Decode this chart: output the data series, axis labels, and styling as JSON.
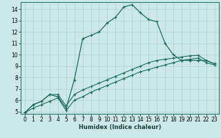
{
  "xlabel": "Humidex (Indice chaleur)",
  "bg_color": "#cde8e8",
  "grid_color": "#b0d0d0",
  "line_color": "#1a6b5a",
  "xlim": [
    -0.5,
    23.5
  ],
  "ylim": [
    4.8,
    14.6
  ],
  "xticks": [
    0,
    1,
    2,
    3,
    4,
    5,
    6,
    7,
    8,
    9,
    10,
    11,
    12,
    13,
    14,
    15,
    16,
    17,
    18,
    19,
    20,
    21,
    22,
    23
  ],
  "yticks": [
    5,
    6,
    7,
    8,
    9,
    10,
    11,
    12,
    13,
    14
  ],
  "curve_main_x": [
    0,
    1,
    2,
    3,
    4,
    5,
    6,
    7,
    8,
    9,
    10,
    11,
    12,
    13,
    14,
    15,
    16,
    17,
    18,
    19,
    20,
    21,
    22,
    23
  ],
  "curve_main_y": [
    4.9,
    5.6,
    5.9,
    6.5,
    6.3,
    5.3,
    7.8,
    11.4,
    11.7,
    12.0,
    12.8,
    13.3,
    14.2,
    14.4,
    13.7,
    13.1,
    12.9,
    11.0,
    10.0,
    9.5,
    9.5,
    9.5,
    9.5,
    9.2
  ],
  "curve_mid_x": [
    0,
    1,
    2,
    3,
    4,
    5,
    6,
    7,
    8,
    9,
    10,
    11,
    12,
    13,
    14,
    15,
    16,
    17,
    18,
    19,
    20,
    21,
    22,
    23
  ],
  "curve_mid_y": [
    4.9,
    5.6,
    5.9,
    6.5,
    6.5,
    5.5,
    6.5,
    6.9,
    7.2,
    7.5,
    7.8,
    8.1,
    8.4,
    8.7,
    9.0,
    9.3,
    9.5,
    9.6,
    9.7,
    9.8,
    9.9,
    9.95,
    9.5,
    9.2
  ],
  "curve_low_x": [
    0,
    1,
    2,
    3,
    4,
    5,
    6,
    7,
    8,
    9,
    10,
    11,
    12,
    13,
    14,
    15,
    16,
    17,
    18,
    19,
    20,
    21,
    22,
    23
  ],
  "curve_low_y": [
    4.9,
    5.3,
    5.6,
    5.9,
    6.2,
    5.1,
    6.0,
    6.3,
    6.7,
    7.0,
    7.3,
    7.6,
    7.9,
    8.2,
    8.5,
    8.7,
    8.9,
    9.1,
    9.3,
    9.5,
    9.6,
    9.7,
    9.3,
    9.1
  ]
}
